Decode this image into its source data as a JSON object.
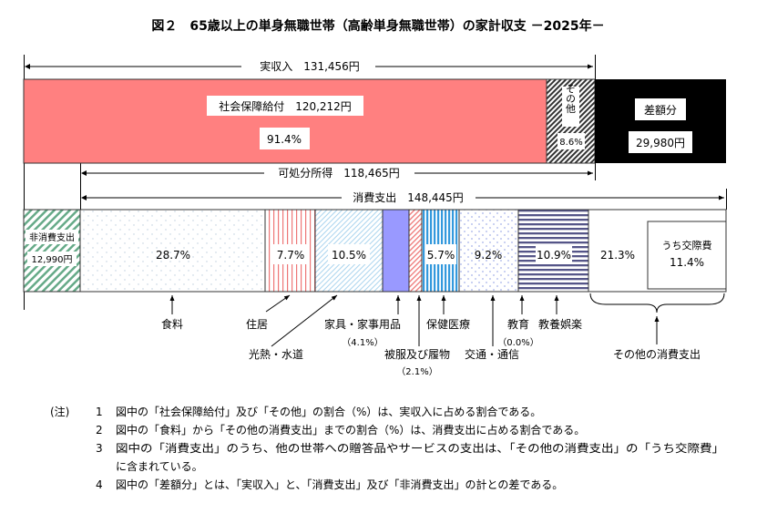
{
  "title": "図２　65歳以上の単身無職世帯（高齢単身無職世帯）の家計収支 －2025年－",
  "income": {
    "total_label": "実収入　131,456円",
    "social_security_label": "社会保障給付　120,212円",
    "social_security_pct": "91.4%",
    "other_label": "その他",
    "other_pct": "8.6%",
    "deficit_label": "差額分",
    "deficit_value": "29,980円",
    "disposable_label": "可処分所得　118,465円",
    "consumption_label": "消費支出　148,445円"
  },
  "expenditure": {
    "non_consumption_label": "非消費支出",
    "non_consumption_value": "12,990円",
    "food_pct": "28.7%",
    "housing_pct": "7.7%",
    "utilities_pct": "10.5%",
    "health_pct": "5.7%",
    "transport_pct": "9.2%",
    "recreation_pct": "10.9%",
    "other_pct": "21.3%",
    "social_label": "うち交際費",
    "social_pct": "11.4%"
  },
  "labels": {
    "food": "食料",
    "housing": "住居",
    "utilities": "光熱・水道",
    "furniture": "家具・家事用品",
    "furniture_pct": "（4.1%）",
    "clothing": "被服及び履物",
    "clothing_pct": "（2.1%）",
    "health": "保健医療",
    "transport": "交通・通信",
    "education": "教育",
    "education_pct": "（0.0%）",
    "recreation": "教養娯楽",
    "other": "その他の消費支出"
  },
  "notes": {
    "prefix": "(注)",
    "items": [
      {
        "num": "1",
        "text": "図中の「社会保障給付」及び「その他」の割合（%）は、実収入に占める割合である。"
      },
      {
        "num": "2",
        "text": "図中の「食料」から「その他の消費支出」までの割合（%）は、消費支出に占める割合である。"
      },
      {
        "num": "3",
        "text": "図中の「消費支出」のうち、他の世帯への贈答品やサービスの支出は、「その他の消費支出」の「うち交際費」"
      },
      {
        "num": "",
        "text": "に含まれている。"
      },
      {
        "num": "4",
        "text": "図中の「差額分」とは、「実収入」と、「消費支出」及び「非消費支出」の計との差である。"
      }
    ]
  },
  "colors": {
    "social_security": "#ff8080",
    "deficit": "#000000",
    "furniture": "#9999ff",
    "health": "#3399dd",
    "recreation": "#555588",
    "non_consumption": "#66aa88"
  }
}
